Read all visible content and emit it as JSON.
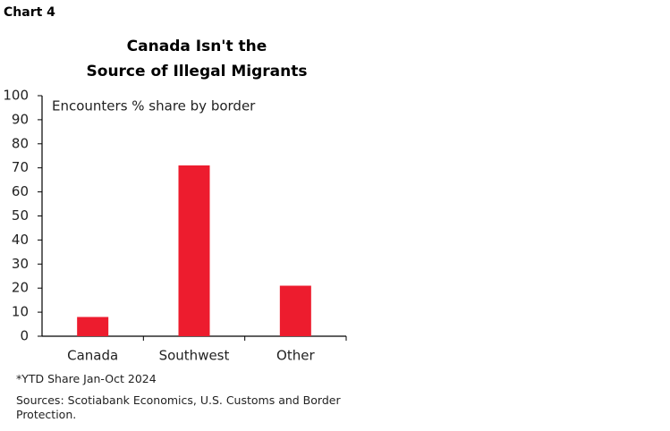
{
  "chart_label": "Chart 4",
  "chart_data": {
    "type": "bar",
    "title": [
      "Canada Isn't the",
      "Source of Illegal Migrants"
    ],
    "y_label": "Encounters % share by border",
    "categories": [
      "Canada",
      "Southwest",
      "Other"
    ],
    "values": [
      8,
      71,
      21
    ],
    "color": "#ed1c2e",
    "ylim": [
      0,
      100
    ],
    "yticks": [
      0,
      10,
      20,
      30,
      40,
      50,
      60,
      70,
      80,
      90,
      100
    ],
    "grid": false,
    "footnote": "*YTD Share Jan-Oct 2024",
    "source": "Sources: Scotiabank Economics, U.S. Customs and Border Protection."
  }
}
